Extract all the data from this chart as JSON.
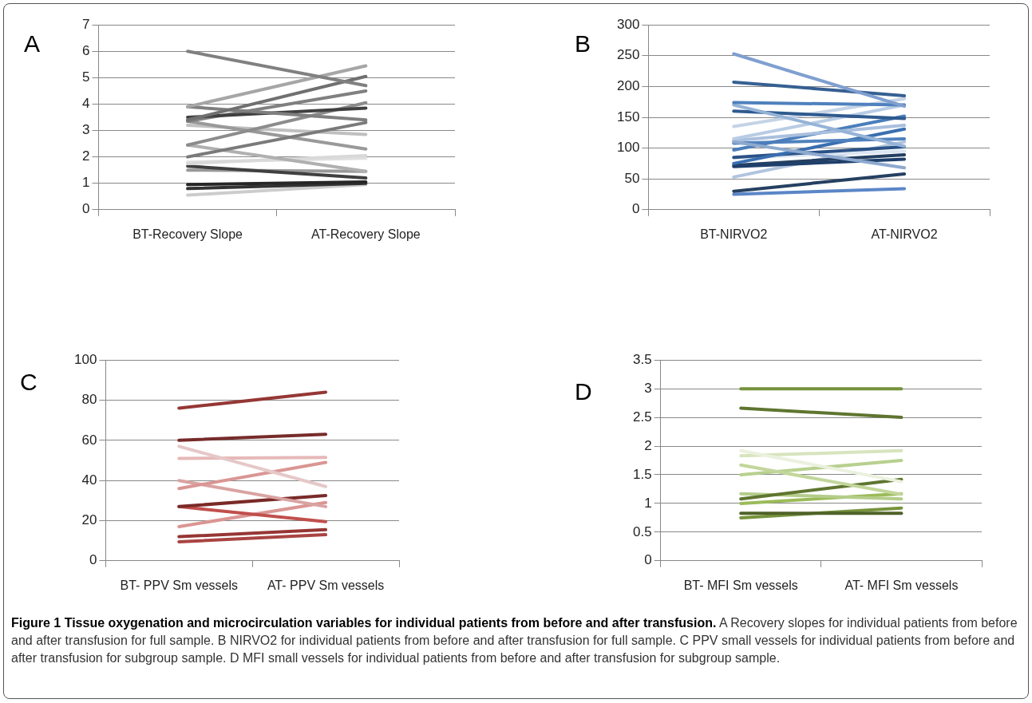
{
  "chart_data": [
    {
      "type": "line",
      "title": "A",
      "categories": [
        "BT-Recovery Slope",
        "AT-Recovery Slope"
      ],
      "ylim": [
        0,
        7
      ],
      "yticks": [
        0,
        1,
        2,
        3,
        4,
        5,
        6,
        7
      ],
      "grid": "y",
      "legend": false,
      "marker": "none",
      "line_style": "solid",
      "annotations": [
        "Figure 1 Tissue oxygenation and microcirculation variables for individual patients from before and after transfusion.",
        "A Recovery slopes for individual patients from before and after transfusion for full sample.  B NIRVO2 for individual patients from before and after transfusion for full sample. C PPV small vessels for individual patients from before and after transfusion for subgroup sample. D MFI small vessels for individual patients from before and after transfusion for subgroup sample."
      ],
      "series": [
        {
          "color": "#808080",
          "values": [
            6.0,
            4.7
          ]
        },
        {
          "color": "#a6a6a6",
          "values": [
            3.9,
            5.45
          ]
        },
        {
          "color": "#707070",
          "values": [
            3.4,
            5.05
          ]
        },
        {
          "color": "#7f7f7f",
          "values": [
            3.9,
            3.4
          ]
        },
        {
          "color": "#404040",
          "values": [
            3.5,
            3.85
          ]
        },
        {
          "color": "#808080",
          "values": [
            3.35,
            4.5
          ]
        },
        {
          "color": "#8c8c8c",
          "values": [
            2.45,
            4.05
          ]
        },
        {
          "color": "#7a7a7a",
          "values": [
            2.0,
            3.3
          ]
        },
        {
          "color": "#999999",
          "values": [
            3.35,
            2.3
          ]
        },
        {
          "color": "#c0c0c0",
          "values": [
            3.2,
            2.85
          ]
        },
        {
          "color": "#b0b0b0",
          "values": [
            2.45,
            1.45
          ]
        },
        {
          "color": "#d9d9d9",
          "values": [
            1.75,
            2.05
          ]
        },
        {
          "color": "#e0e0e0",
          "values": [
            1.8,
            1.95
          ]
        },
        {
          "color": "#404040",
          "values": [
            1.65,
            1.2
          ]
        },
        {
          "color": "#999999",
          "values": [
            1.5,
            1.45
          ]
        },
        {
          "color": "#262626",
          "values": [
            0.95,
            1.05
          ]
        },
        {
          "color": "#333333",
          "values": [
            0.8,
            1.0
          ]
        },
        {
          "color": "#cccccc",
          "values": [
            0.55,
            0.95
          ]
        }
      ]
    },
    {
      "type": "line",
      "title": "B",
      "categories": [
        "BT-NIRVO2",
        "AT-NIRVO2"
      ],
      "ylim": [
        0,
        300
      ],
      "yticks": [
        0,
        50,
        100,
        150,
        200,
        250,
        300
      ],
      "grid": "y",
      "legend": false,
      "marker": "none",
      "line_style": "solid",
      "series": [
        {
          "color": "#7f9fcf",
          "values": [
            253,
            168
          ]
        },
        {
          "color": "#366092",
          "values": [
            207,
            185
          ]
        },
        {
          "color": "#4f81bd",
          "values": [
            174,
            170
          ]
        },
        {
          "color": "#95b3d7",
          "values": [
            170,
            103
          ]
        },
        {
          "color": "#2f5a8f",
          "values": [
            160,
            148
          ]
        },
        {
          "color": "#c5d3e6",
          "values": [
            135,
            180
          ]
        },
        {
          "color": "#b8cce4",
          "values": [
            115,
            170
          ]
        },
        {
          "color": "#8ea9cf",
          "values": [
            110,
            68
          ]
        },
        {
          "color": "#a9bfdd",
          "values": [
            112,
            137
          ]
        },
        {
          "color": "#4a7ebb",
          "values": [
            97,
            152
          ]
        },
        {
          "color": "#4f81bd",
          "values": [
            108,
            115
          ]
        },
        {
          "color": "#3a6fb0",
          "values": [
            75,
            131
          ]
        },
        {
          "color": "#2b5286",
          "values": [
            85,
            102
          ]
        },
        {
          "color": "#1f3f6b",
          "values": [
            70,
            82
          ]
        },
        {
          "color": "#243f60",
          "values": [
            72,
            89
          ]
        },
        {
          "color": "#dce6f2",
          "values": [
            84,
            95
          ]
        },
        {
          "color": "#b0c4de",
          "values": [
            53,
            110
          ]
        },
        {
          "color": "#254061",
          "values": [
            30,
            58
          ]
        },
        {
          "color": "#5b86c7",
          "values": [
            25,
            34
          ]
        }
      ]
    },
    {
      "type": "line",
      "title": "C",
      "categories": [
        "BT- PPV Sm vessels",
        "AT- PPV Sm vessels"
      ],
      "ylim": [
        0,
        100
      ],
      "yticks": [
        0,
        20,
        40,
        60,
        80,
        100
      ],
      "grid": "y",
      "legend": false,
      "marker": "none",
      "line_style": "solid",
      "series": [
        {
          "color": "#953735",
          "values": [
            76,
            84
          ]
        },
        {
          "color": "#772c2a",
          "values": [
            60,
            63
          ]
        },
        {
          "color": "#e6c8c8",
          "values": [
            57,
            37
          ]
        },
        {
          "color": "#e6b9b8",
          "values": [
            51,
            51.5
          ]
        },
        {
          "color": "#d99694",
          "values": [
            36,
            49
          ]
        },
        {
          "color": "#d9a3a2",
          "values": [
            40,
            27
          ]
        },
        {
          "color": "#7a2a28",
          "values": [
            27,
            32.5
          ]
        },
        {
          "color": "#c0504d",
          "values": [
            27,
            19.5
          ]
        },
        {
          "color": "#da9694",
          "values": [
            17,
            29
          ]
        },
        {
          "color": "#963634",
          "values": [
            12,
            15.5
          ]
        },
        {
          "color": "#a94442",
          "values": [
            9.5,
            13
          ]
        }
      ]
    },
    {
      "type": "line",
      "title": "D",
      "categories": [
        "BT- MFI Sm vessels",
        "AT- MFI Sm vessels"
      ],
      "ylim": [
        0,
        3.5
      ],
      "yticks": [
        0,
        0.5,
        1,
        1.5,
        2,
        2.5,
        3,
        3.5
      ],
      "grid": "y",
      "legend": false,
      "marker": "none",
      "line_style": "solid",
      "series": [
        {
          "color": "#76923c",
          "values": [
            3,
            3
          ]
        },
        {
          "color": "#5f7530",
          "values": [
            2.66,
            2.5
          ]
        },
        {
          "color": "#ebf1de",
          "values": [
            1.92,
            1.38
          ]
        },
        {
          "color": "#d7e4bd",
          "values": [
            1.83,
            1.92
          ]
        },
        {
          "color": "#c3d69b",
          "values": [
            1.67,
            1.16
          ]
        },
        {
          "color": "#b8d08f",
          "values": [
            1.5,
            1.75
          ]
        },
        {
          "color": "#5f7530",
          "values": [
            1.08,
            1.42
          ]
        },
        {
          "color": "#b4cd8a",
          "values": [
            1.17,
            1.08
          ]
        },
        {
          "color": "#9bbb59",
          "values": [
            1.0,
            1.17
          ]
        },
        {
          "color": "#4f6228",
          "values": [
            0.83,
            0.83
          ]
        },
        {
          "color": "#77933c",
          "values": [
            0.75,
            0.92
          ]
        }
      ]
    }
  ]
}
